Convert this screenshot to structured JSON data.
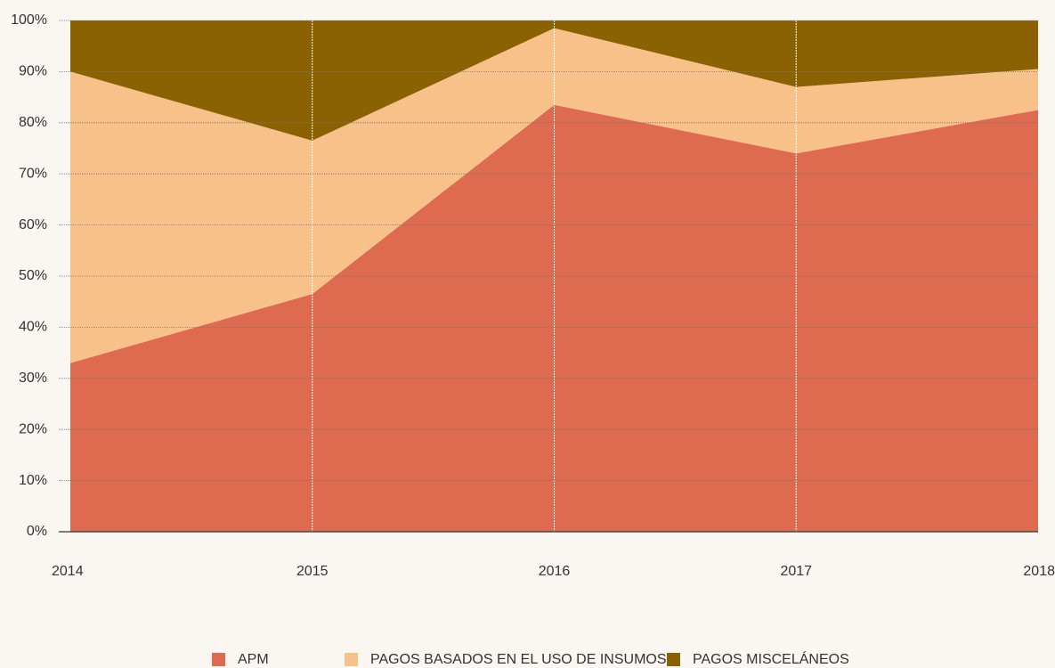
{
  "chart_data": {
    "type": "stacked_area",
    "categories": [
      "2014",
      "2015",
      "2016",
      "2017",
      "2018"
    ],
    "series": [
      {
        "name": "APM",
        "color": "#de6b50",
        "values": [
          33,
          46.5,
          83.5,
          74,
          82.5
        ]
      },
      {
        "name": "PAGOS BASADOS EN EL USO DE INSUMOS",
        "color": "#f9c18a",
        "values": [
          57,
          30,
          15,
          13,
          8
        ]
      },
      {
        "name": "PAGOS MISCELÁNEOS",
        "color": "#8b6202",
        "values": [
          10,
          23.5,
          1.5,
          13,
          9.5
        ]
      }
    ],
    "ylim": [
      0,
      100
    ],
    "yticks": [
      {
        "value": 0,
        "label": "0%"
      },
      {
        "value": 10,
        "label": "10%"
      },
      {
        "value": 20,
        "label": "20%"
      },
      {
        "value": 30,
        "label": "30%"
      },
      {
        "value": 40,
        "label": "40%"
      },
      {
        "value": 50,
        "label": "50%"
      },
      {
        "value": 60,
        "label": "60%"
      },
      {
        "value": 70,
        "label": "70%"
      },
      {
        "value": 80,
        "label": "80%"
      },
      {
        "value": 90,
        "label": "90%"
      },
      {
        "value": 100,
        "label": "100%"
      }
    ],
    "grid": true,
    "legend": "bottom"
  }
}
